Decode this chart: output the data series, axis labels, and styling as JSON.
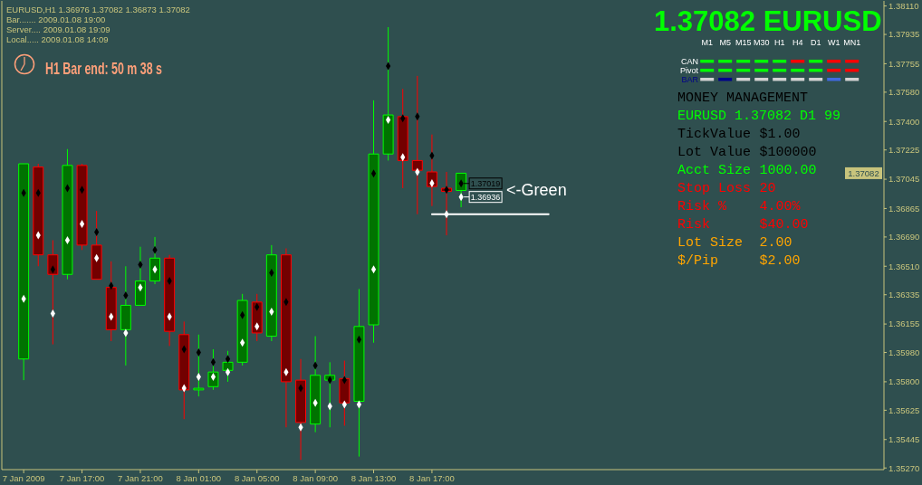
{
  "chart_data": [
    {
      "type": "candlestick",
      "title": "EURUSD,H1 1.36976 1.37082 1.36873 1.37082",
      "x": [
        "2009-01-07T13:00",
        "2009-01-07T14:00",
        "2009-01-07T15:00",
        "2009-01-07T16:00",
        "2009-01-07T17:00",
        "2009-01-07T18:00",
        "2009-01-07T19:00",
        "2009-01-07T20:00",
        "2009-01-07T21:00",
        "2009-01-07T22:00",
        "2009-01-07T23:00",
        "2009-01-08T00:00",
        "2009-01-08T01:00",
        "2009-01-08T02:00",
        "2009-01-08T03:00",
        "2009-01-08T04:00",
        "2009-01-08T05:00",
        "2009-01-08T06:00",
        "2009-01-08T07:00",
        "2009-01-08T08:00",
        "2009-01-08T09:00",
        "2009-01-08T10:00",
        "2009-01-08T11:00",
        "2009-01-08T12:00",
        "2009-01-08T13:00",
        "2009-01-08T14:00",
        "2009-01-08T15:00",
        "2009-01-08T16:00",
        "2009-01-08T17:00",
        "2009-01-08T18:00",
        "2009-01-08T19:00"
      ],
      "ohlc": [
        [
          1.3594,
          1.3714,
          1.3581,
          1.3714
        ],
        [
          1.3712,
          1.3714,
          1.3651,
          1.3658
        ],
        [
          1.3658,
          1.3667,
          1.3603,
          1.3646
        ],
        [
          1.3646,
          1.3723,
          1.3643,
          1.3713
        ],
        [
          1.3713,
          1.3714,
          1.3661,
          1.3664
        ],
        [
          1.3664,
          1.3685,
          1.3643,
          1.3643
        ],
        [
          1.3638,
          1.3654,
          1.3605,
          1.3612
        ],
        [
          1.3612,
          1.3651,
          1.359,
          1.3627
        ],
        [
          1.3627,
          1.3663,
          1.3627,
          1.3642
        ],
        [
          1.3642,
          1.3669,
          1.364,
          1.3656
        ],
        [
          1.3656,
          1.3658,
          1.3602,
          1.3611
        ],
        [
          1.3609,
          1.3617,
          1.3557,
          1.3575
        ],
        [
          1.3575,
          1.3609,
          1.3571,
          1.3576
        ],
        [
          1.3577,
          1.36,
          1.3575,
          1.3586
        ],
        [
          1.3587,
          1.3599,
          1.358,
          1.3592
        ],
        [
          1.3592,
          1.3634,
          1.359,
          1.363
        ],
        [
          1.3629,
          1.3634,
          1.3605,
          1.361
        ],
        [
          1.3608,
          1.3664,
          1.3605,
          1.3658
        ],
        [
          1.3658,
          1.3662,
          1.3552,
          1.358
        ],
        [
          1.3581,
          1.3594,
          1.3532,
          1.3555
        ],
        [
          1.3554,
          1.3608,
          1.3549,
          1.3584
        ],
        [
          1.3581,
          1.3592,
          1.3552,
          1.3584
        ],
        [
          1.3582,
          1.3593,
          1.3553,
          1.3567
        ],
        [
          1.3568,
          1.3637,
          1.3534,
          1.3614
        ],
        [
          1.3615,
          1.3753,
          1.3604,
          1.372
        ],
        [
          1.372,
          1.3798,
          1.3716,
          1.3744
        ],
        [
          1.3743,
          1.376,
          1.3699,
          1.3716
        ],
        [
          1.3716,
          1.3768,
          1.3683,
          1.371
        ],
        [
          1.3709,
          1.3732,
          1.3688,
          1.37
        ],
        [
          1.3699,
          1.3709,
          1.367,
          1.3697
        ],
        [
          1.36976,
          1.37082,
          1.36873,
          1.37082
        ]
      ],
      "colors": [
        "#00ff00",
        "#ff0000",
        "#ff0000",
        "#00ff00",
        "#ff0000",
        "#ff0000",
        "#ff0000",
        "#00ff00",
        "#00ff00",
        "#00ff00",
        "#ff0000",
        "#ff0000",
        "#00ff00",
        "#00ff00",
        "#00ff00",
        "#00ff00",
        "#ff0000",
        "#00ff00",
        "#ff0000",
        "#ff0000",
        "#00ff00",
        "#00ff00",
        "#ff0000",
        "#00ff00",
        "#00ff00",
        "#00ff00",
        "#ff0000",
        "#ff0000",
        "#ff0000",
        "#ff0000",
        "#00ff00"
      ],
      "series": [
        {
          "type": "scatter",
          "color": "#000000",
          "marker": "diamond",
          "values": [
            1.3696,
            1.3696,
            1.3649,
            1.3699,
            1.3698,
            1.3672,
            1.3639,
            1.3633,
            1.3652,
            1.3661,
            1.3642,
            1.36,
            1.3598,
            1.3592,
            1.3594,
            1.3621,
            1.3626,
            1.3647,
            1.3629,
            1.3576,
            1.359,
            1.3581,
            1.3581,
            1.3606,
            1.3708,
            1.3774,
            1.3742,
            1.3743,
            1.3719,
            1.3698,
            1.37019
          ],
          "value_labels": [
            null,
            null,
            null,
            null,
            null,
            null,
            null,
            null,
            null,
            null,
            null,
            null,
            null,
            null,
            null,
            null,
            null,
            null,
            null,
            null,
            null,
            null,
            null,
            null,
            null,
            null,
            null,
            null,
            null,
            null,
            "1.37019"
          ]
        },
        {
          "type": "scatter",
          "color": "#ffffff",
          "marker": "diamond",
          "values": [
            1.3631,
            1.367,
            1.3622,
            1.3667,
            1.3677,
            1.3656,
            1.362,
            1.361,
            1.3638,
            1.3649,
            1.362,
            1.3576,
            1.3583,
            1.3583,
            1.3586,
            1.3604,
            1.3614,
            1.3623,
            1.3586,
            1.3552,
            1.3567,
            1.3565,
            1.3566,
            1.3566,
            1.3649,
            1.3741,
            1.3718,
            1.3709,
            1.3702,
            1.3683,
            1.36936
          ],
          "value_labels": [
            null,
            null,
            null,
            null,
            null,
            null,
            null,
            null,
            null,
            null,
            null,
            null,
            null,
            null,
            null,
            null,
            null,
            null,
            null,
            null,
            null,
            null,
            null,
            null,
            null,
            null,
            null,
            null,
            null,
            null,
            "1.36936"
          ]
        },
        {
          "type": "line",
          "color": "#ffffff",
          "x": [
            "2009-01-08T17:00",
            "2009-01-09T01:00"
          ],
          "values": [
            1.3683,
            1.3683
          ]
        }
      ],
      "xlim": [
        "2009-01-07T11:30",
        "2009-01-10T00:00"
      ],
      "xticks": [
        {
          "value": "2009-01-07T13:00",
          "label": "7 Jan 2009"
        },
        {
          "value": "2009-01-07T17:00",
          "label": "7 Jan 17:00"
        },
        {
          "value": "2009-01-07T21:00",
          "label": "7 Jan 21:00"
        },
        {
          "value": "2009-01-08T01:00",
          "label": "8 Jan 01:00"
        },
        {
          "value": "2009-01-08T05:00",
          "label": "8 Jan 05:00"
        },
        {
          "value": "2009-01-08T09:00",
          "label": "8 Jan 09:00"
        },
        {
          "value": "2009-01-08T13:00",
          "label": "8 Jan 13:00"
        },
        {
          "value": "2009-01-08T17:00",
          "label": "8 Jan 17:00"
        }
      ],
      "ylim": [
        1.3526,
        1.3813
      ],
      "yticks": [
        {
          "value": 1.3811,
          "label": "1.38110"
        },
        1.37935,
        1.37755,
        {
          "value": 1.3758,
          "label": "1.37580"
        },
        {
          "value": 1.374,
          "label": "1.37400"
        },
        1.37225,
        1.37045,
        1.36865,
        {
          "value": 1.3669,
          "label": "1.36690"
        },
        {
          "value": 1.3651,
          "label": "1.36510"
        },
        1.36335,
        1.36155,
        {
          "value": 1.3598,
          "label": "1.35980"
        },
        {
          "value": 1.358,
          "label": "1.35800"
        },
        1.35625,
        1.35445,
        {
          "value": 1.3527,
          "label": "1.35270"
        }
      ],
      "annotations": [
        "Bar....... 2009.01.08 19:00",
        "Server.... 2009.01.08 19:09",
        "Local..... 2009.01.08 14:09",
        "H1 Bar end: 50 m 38 s",
        "1.37082 EURUSD",
        "MONEY MANAGEMENT",
        "EURUSD 1.37082 D1 99",
        "TickValue",
        "$1.00",
        "Lot Value",
        "$100000",
        "Acct Size",
        "1000.00",
        "Stop Loss",
        "20",
        "Risk %",
        "4.00%",
        "Risk",
        "$40.00",
        "Lot Size",
        "2.00",
        "$/Pip",
        "$2.00",
        "<-Green",
        "1.37082"
      ]
    },
    {
      "type": "other",
      "categories": [
        "M1",
        "M5",
        "M15",
        "M30",
        "H1",
        "H4",
        "D1",
        "W1",
        "MN1"
      ],
      "y_categories": [
        "CAN",
        "Pivot",
        "BAR"
      ],
      "colors": [
        [
          "#00ff00",
          "#00ff00",
          "#00ff00",
          "#00ff00",
          "#00ff00",
          "#ff0000",
          "#00ff00",
          "#ff0000",
          "#ff0000"
        ],
        [
          "#00ff00",
          "#00ff00",
          "#00ff00",
          "#00ff00",
          "#00ff00",
          "#00ff00",
          "#00ff00",
          "#ff0000",
          "#ff0000"
        ],
        [
          "#d3d3d3",
          "#00008b",
          "#d3d3d3",
          "#d3d3d3",
          "#d3d3d3",
          "#d3d3d3",
          "#d3d3d3",
          "#4169e1",
          "#d3d3d3"
        ]
      ]
    }
  ]
}
